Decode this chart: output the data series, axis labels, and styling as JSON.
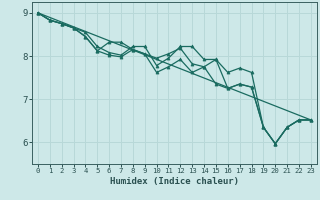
{
  "xlabel": "Humidex (Indice chaleur)",
  "bg_color": "#cde8e8",
  "grid_color": "#b8d8d8",
  "line_color": "#1a6b60",
  "xlim": [
    -0.5,
    23.5
  ],
  "ylim": [
    5.5,
    9.25
  ],
  "yticks": [
    6,
    7,
    8,
    9
  ],
  "xticks": [
    0,
    1,
    2,
    3,
    4,
    5,
    6,
    7,
    8,
    9,
    10,
    11,
    12,
    13,
    14,
    15,
    16,
    17,
    18,
    19,
    20,
    21,
    22,
    23
  ],
  "lines": [
    {
      "x": [
        0,
        1,
        2,
        3,
        4,
        5,
        6,
        7,
        8,
        9,
        10,
        11,
        12,
        13,
        14,
        15,
        16,
        17,
        18,
        19,
        20,
        21,
        22,
        23
      ],
      "y": [
        9.0,
        8.83,
        8.75,
        8.65,
        8.55,
        8.22,
        8.08,
        8.02,
        8.22,
        8.22,
        7.78,
        7.95,
        8.22,
        8.22,
        7.92,
        7.92,
        7.25,
        7.35,
        7.28,
        6.35,
        5.97,
        6.35,
        6.52,
        6.52
      ],
      "marker": true
    },
    {
      "x": [
        0,
        1,
        2,
        3,
        4,
        5,
        6,
        7,
        8,
        9,
        10,
        11,
        12,
        13,
        14,
        15,
        16,
        17,
        18,
        19,
        20,
        21,
        22,
        23
      ],
      "y": [
        9.0,
        8.83,
        8.75,
        8.65,
        8.45,
        8.12,
        8.32,
        8.32,
        8.15,
        8.05,
        7.95,
        8.05,
        8.18,
        7.82,
        7.75,
        7.92,
        7.62,
        7.72,
        7.62,
        6.35,
        5.97,
        6.35,
        6.52,
        6.52
      ],
      "marker": true
    },
    {
      "x": [
        0,
        1,
        2,
        3,
        4,
        5,
        6,
        7,
        8,
        9,
        10,
        11,
        12,
        13,
        14,
        15,
        16,
        17,
        18,
        19,
        20,
        21,
        22,
        23
      ],
      "y": [
        9.0,
        8.83,
        8.75,
        8.65,
        8.45,
        8.12,
        8.02,
        7.98,
        8.15,
        8.05,
        7.62,
        7.75,
        7.92,
        7.62,
        7.75,
        7.35,
        7.25,
        7.35,
        7.28,
        6.35,
        5.97,
        6.35,
        6.52,
        6.52
      ],
      "marker": true
    },
    {
      "x": [
        0,
        23
      ],
      "y": [
        9.0,
        6.52
      ],
      "marker": false
    }
  ]
}
